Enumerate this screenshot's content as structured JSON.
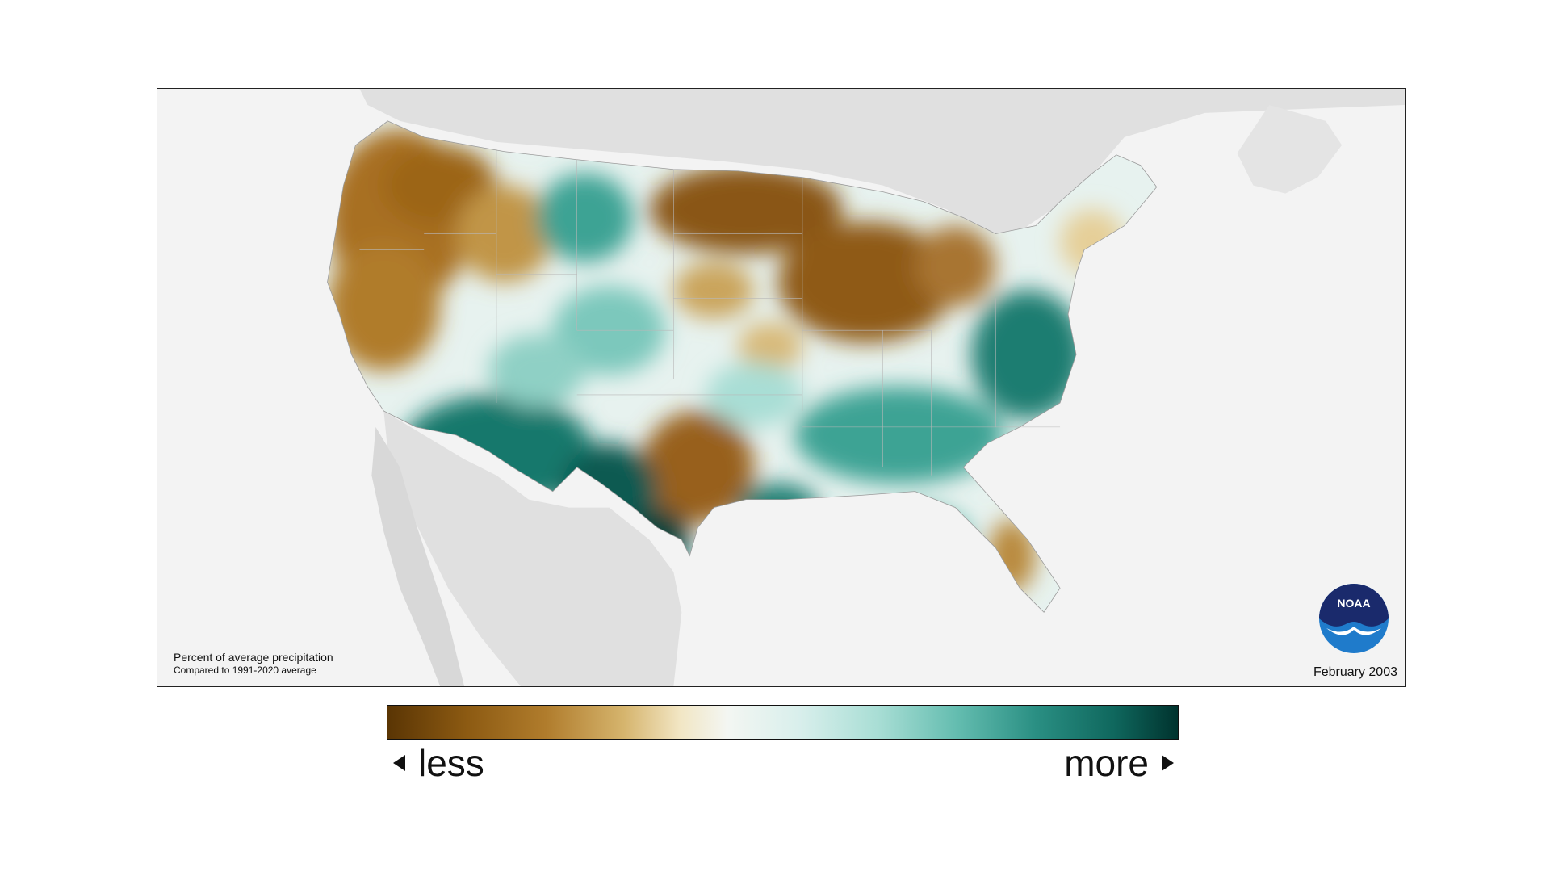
{
  "map": {
    "caption_title": "Percent of average precipitation",
    "caption_subtitle": "Compared to 1991-2020 average",
    "date": "February 2003",
    "logo_text": "NOAA",
    "colors": {
      "drier": "#8c5a12",
      "near_normal": "#f3f6f2",
      "wetter": "#0f675d",
      "background_land": "#e2e2e2",
      "ocean": "#f3f3f3"
    }
  },
  "legend": {
    "less_label": "less",
    "more_label": "more"
  }
}
